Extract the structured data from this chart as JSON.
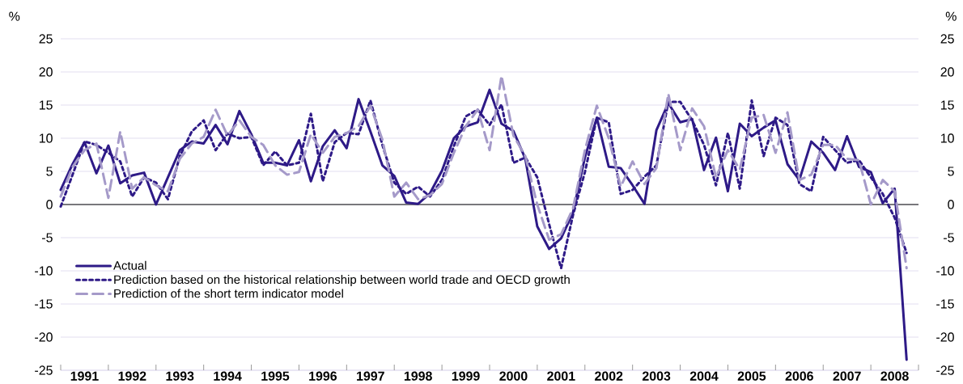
{
  "chart_data": {
    "type": "line",
    "ylabel": "%",
    "y2label": "%",
    "x": [
      1991,
      1991.25,
      1991.5,
      1991.75,
      1992,
      1992.25,
      1992.5,
      1992.75,
      1993,
      1993.25,
      1993.5,
      1993.75,
      1994,
      1994.25,
      1994.5,
      1994.75,
      1995,
      1995.25,
      1995.5,
      1995.75,
      1996,
      1996.25,
      1996.5,
      1996.75,
      1997,
      1997.25,
      1997.5,
      1997.75,
      1998,
      1998.25,
      1998.5,
      1998.75,
      1999,
      1999.25,
      1999.5,
      1999.75,
      2000,
      2000.25,
      2000.5,
      2000.75,
      2001,
      2001.25,
      2001.5,
      2001.75,
      2002,
      2002.25,
      2002.5,
      2002.75,
      2003,
      2003.25,
      2003.5,
      2003.75,
      2004,
      2004.25,
      2004.5,
      2004.75,
      2005,
      2005.25,
      2005.5,
      2005.75,
      2006,
      2006.25,
      2006.5,
      2006.75,
      2007,
      2007.25,
      2007.5,
      2007.75,
      2008,
      2008.25,
      2008.5,
      2008.75
    ],
    "series": [
      {
        "name": "Actual",
        "color": "#2e1a87",
        "line_style": "solid",
        "values": [
          2.2,
          6.1,
          9.4,
          4.7,
          8.9,
          3.2,
          4.4,
          4.8,
          0,
          4.1,
          8.2,
          9.5,
          9.2,
          12.0,
          9.1,
          14.1,
          10.6,
          6.3,
          6.3,
          5.9,
          9.7,
          3.5,
          8.8,
          11.2,
          8.5,
          15.9,
          11.0,
          5.9,
          4.3,
          0.3,
          0.1,
          1.7,
          5.1,
          10.0,
          11.8,
          12.4,
          17.3,
          12.2,
          11.1,
          6.9,
          -3.3,
          -6.7,
          -5.1,
          -1.2,
          7.1,
          13.1,
          5.7,
          5.5,
          2.9,
          0.1,
          11.2,
          15.3,
          12.4,
          12.9,
          5.2,
          10.1,
          2.0,
          12.2,
          10.3,
          11.6,
          12.7,
          6.1,
          3.7,
          9.5,
          7.8,
          5.2,
          10.3,
          5.7,
          4.9,
          0.2,
          2.4,
          -23.4
        ]
      },
      {
        "name": "Prediction based on the historical relationship between world trade and OECD growth",
        "color": "#2e1a87",
        "line_style": "dotted",
        "values": [
          -0.3,
          4.5,
          9.5,
          9.0,
          7.8,
          6.5,
          1.2,
          4.1,
          3.3,
          0.8,
          7.3,
          11.0,
          12.7,
          8.2,
          10.7,
          10.0,
          10.2,
          5.9,
          8.0,
          5.9,
          6.3,
          13.7,
          3.5,
          9.4,
          10.8,
          10.6,
          15.7,
          9.0,
          3.3,
          1.6,
          2.7,
          1.2,
          3.7,
          8.8,
          13.3,
          14.3,
          12.0,
          15.1,
          6.3,
          7.1,
          4.1,
          -3.0,
          -9.6,
          -1.6,
          4.9,
          13.1,
          12.4,
          1.6,
          2.2,
          4.2,
          5.9,
          15.5,
          15.5,
          12.7,
          9.0,
          2.9,
          10.8,
          2.4,
          15.7,
          7.3,
          13.1,
          12.0,
          3.1,
          2.0,
          10.2,
          8.2,
          6.3,
          6.7,
          4.1,
          1.6,
          -2.0,
          -7.3
        ]
      },
      {
        "name": "Prediction of the short term indicator model",
        "color": "#a59ac9",
        "line_style": "dashed",
        "values": [
          1.2,
          5.7,
          8.2,
          9.2,
          1.0,
          11.0,
          2.4,
          4.1,
          2.9,
          2.0,
          6.9,
          9.2,
          10.2,
          14.3,
          10.4,
          12.7,
          10.2,
          9.0,
          5.9,
          4.5,
          4.9,
          10.6,
          7.8,
          10.2,
          10.8,
          11.8,
          14.9,
          9.8,
          1.2,
          3.3,
          0.8,
          1.4,
          3.1,
          7.8,
          11.8,
          14.3,
          8.2,
          19.4,
          10.4,
          7.3,
          0,
          -5.3,
          -4.5,
          -0.6,
          8.2,
          14.9,
          10.0,
          2.7,
          6.5,
          3.1,
          5.5,
          16.7,
          8.2,
          14.5,
          11.8,
          4.1,
          8.2,
          5.3,
          13.1,
          13.5,
          7.8,
          13.9,
          3.7,
          4.5,
          9.0,
          9.0,
          6.9,
          6.7,
          0,
          3.7,
          2.0,
          -9.6
        ]
      }
    ],
    "xlim": [
      1991,
      2009
    ],
    "xticks": [
      {
        "value": 1991.5,
        "label": "1991"
      },
      {
        "value": 1992.5,
        "label": "1992"
      },
      {
        "value": 1993.5,
        "label": "1993"
      },
      {
        "value": 1994.5,
        "label": "1994"
      },
      {
        "value": 1995.5,
        "label": "1995"
      },
      {
        "value": 1996.5,
        "label": "1996"
      },
      {
        "value": 1997.5,
        "label": "1997"
      },
      {
        "value": 1998.5,
        "label": "1998"
      },
      {
        "value": 1999.5,
        "label": "1999"
      },
      {
        "value": 2000.5,
        "label": "2000"
      },
      {
        "value": 2001.5,
        "label": "2001"
      },
      {
        "value": 2002.5,
        "label": "2002"
      },
      {
        "value": 2003.5,
        "label": "2003"
      },
      {
        "value": 2004.5,
        "label": "2004"
      },
      {
        "value": 2005.5,
        "label": "2005"
      },
      {
        "value": 2006.5,
        "label": "2006"
      },
      {
        "value": 2007.5,
        "label": "2007"
      },
      {
        "value": 2008.5,
        "label": "2008"
      },
      {
        "value": 1991,
        "label": null
      },
      {
        "value": 1992,
        "label": null
      },
      {
        "value": 1993,
        "label": null
      },
      {
        "value": 1994,
        "label": null
      },
      {
        "value": 1995,
        "label": null
      },
      {
        "value": 1996,
        "label": null
      },
      {
        "value": 1997,
        "label": null
      },
      {
        "value": 1998,
        "label": null
      },
      {
        "value": 1999,
        "label": null
      },
      {
        "value": 2000,
        "label": null
      },
      {
        "value": 2001,
        "label": null
      },
      {
        "value": 2002,
        "label": null
      },
      {
        "value": 2003,
        "label": null
      },
      {
        "value": 2004,
        "label": null
      },
      {
        "value": 2005,
        "label": null
      },
      {
        "value": 2006,
        "label": null
      },
      {
        "value": 2007,
        "label": null
      },
      {
        "value": 2008,
        "label": null
      },
      {
        "value": 2009,
        "label": null
      }
    ],
    "ylim": [
      -25,
      25
    ],
    "yticks": [
      -25,
      -20,
      -15,
      -10,
      -5,
      0,
      5,
      10,
      15,
      20,
      25
    ],
    "y2lim": [
      -25,
      25
    ],
    "y2ticks": [
      -25,
      -20,
      -15,
      -10,
      -5,
      0,
      5,
      10,
      15,
      20,
      25
    ],
    "grid": "y",
    "legend": "bottom left"
  }
}
